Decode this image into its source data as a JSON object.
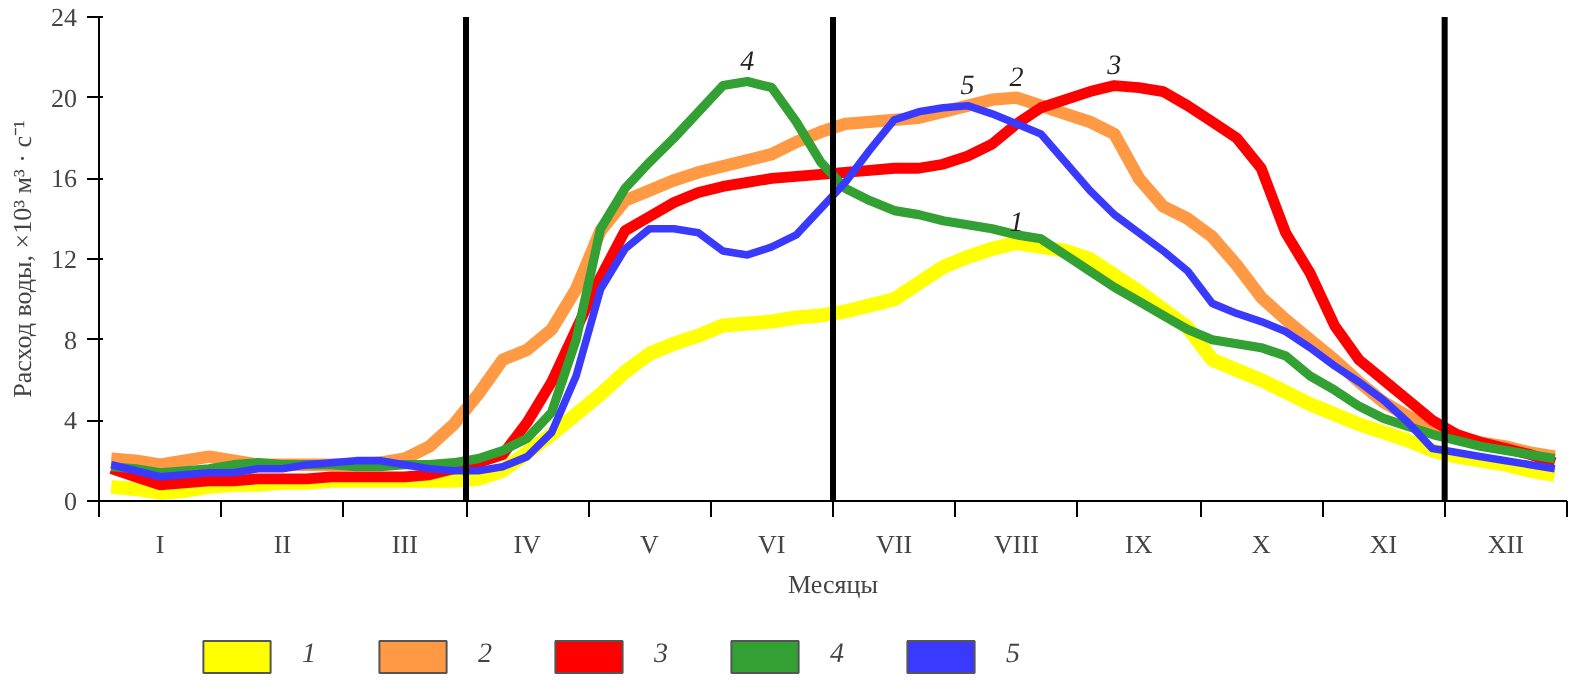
{
  "chart_data": {
    "type": "line",
    "ylabel": "Расход воды, ×10³ м³ · с⁻¹",
    "xlabel": "Месяцы",
    "categories": [
      null,
      null,
      "I",
      null,
      null,
      null,
      null,
      "II",
      null,
      null,
      null,
      null,
      "III",
      null,
      null,
      null,
      null,
      "IV",
      null,
      null,
      null,
      null,
      "V",
      null,
      null,
      null,
      null,
      "VI",
      null,
      null,
      null,
      null,
      "VII",
      null,
      null,
      null,
      null,
      "VIII",
      null,
      null,
      null,
      null,
      "IX",
      null,
      null,
      null,
      null,
      "X",
      null,
      null,
      null,
      null,
      "XI",
      null,
      null,
      null,
      null,
      "XII",
      null,
      null
    ],
    "ylim": [
      0,
      24
    ],
    "yticks": [
      0,
      4,
      8,
      12,
      16,
      20,
      24
    ],
    "grid": false,
    "legend": "bottom left",
    "marker": "none",
    "line_style": "solid",
    "series": [
      {
        "name": "1",
        "color": "#ffff00",
        "values": [
          0.7,
          0.6,
          0.4,
          0.5,
          0.7,
          0.8,
          0.8,
          0.9,
          0.9,
          1.0,
          1.0,
          1.0,
          1.0,
          1.0,
          1.0,
          1.1,
          1.5,
          2.4,
          3.3,
          4.3,
          5.3,
          6.4,
          7.3,
          7.8,
          8.2,
          8.7,
          8.8,
          8.9,
          9.1,
          9.2,
          9.4,
          9.7,
          10.0,
          10.8,
          11.6,
          12.1,
          12.5,
          12.8,
          12.6,
          12.4,
          12.0,
          11.2,
          10.4,
          9.5,
          8.6,
          7.0,
          6.5,
          6.0,
          5.4,
          4.8,
          4.3,
          3.8,
          3.4,
          3.0,
          2.5,
          2.2,
          2.0,
          1.8,
          1.5,
          1.3
        ]
      },
      {
        "name": "2",
        "color": "#ff9944",
        "values": [
          2.1,
          2.0,
          1.8,
          2.0,
          2.2,
          2.0,
          1.8,
          1.8,
          1.8,
          1.8,
          1.8,
          1.9,
          2.1,
          2.7,
          3.8,
          5.3,
          7.0,
          7.5,
          8.5,
          10.5,
          13.4,
          14.9,
          15.4,
          15.9,
          16.3,
          16.6,
          16.9,
          17.2,
          17.8,
          18.3,
          18.7,
          18.8,
          18.9,
          19.0,
          19.3,
          19.6,
          19.9,
          20.0,
          19.6,
          19.2,
          18.8,
          18.2,
          16.0,
          14.6,
          14.0,
          13.1,
          11.7,
          10.1,
          9.0,
          8.0,
          7.0,
          5.9,
          4.9,
          4.2,
          3.6,
          3.2,
          2.9,
          2.7,
          2.4,
          2.2
        ]
      },
      {
        "name": "3",
        "color": "#ff0000",
        "values": [
          1.6,
          1.2,
          0.8,
          0.9,
          1.0,
          1.0,
          1.1,
          1.1,
          1.1,
          1.2,
          1.2,
          1.2,
          1.2,
          1.3,
          1.6,
          1.9,
          2.3,
          3.9,
          5.9,
          8.5,
          11.1,
          13.4,
          14.1,
          14.8,
          15.3,
          15.6,
          15.8,
          16.0,
          16.1,
          16.2,
          16.3,
          16.4,
          16.5,
          16.5,
          16.7,
          17.1,
          17.7,
          18.7,
          19.5,
          19.9,
          20.3,
          20.6,
          20.5,
          20.3,
          19.6,
          18.8,
          18.0,
          16.5,
          13.3,
          11.3,
          8.7,
          7.0,
          6.0,
          5.0,
          4.0,
          3.3,
          2.9,
          2.6,
          2.3,
          1.9
        ]
      },
      {
        "name": "4",
        "color": "#33a033",
        "values": [
          1.7,
          1.6,
          1.4,
          1.5,
          1.6,
          1.8,
          1.9,
          1.8,
          1.8,
          1.8,
          1.7,
          1.7,
          1.8,
          1.8,
          1.9,
          2.1,
          2.5,
          3.1,
          4.4,
          8.0,
          13.5,
          15.5,
          16.8,
          18.0,
          19.3,
          20.6,
          20.8,
          20.5,
          18.8,
          16.8,
          15.5,
          14.9,
          14.4,
          14.2,
          13.9,
          13.7,
          13.5,
          13.2,
          13.0,
          12.2,
          11.4,
          10.6,
          9.9,
          9.2,
          8.5,
          8.0,
          7.8,
          7.6,
          7.2,
          6.2,
          5.5,
          4.7,
          4.1,
          3.7,
          3.3,
          3.0,
          2.7,
          2.5,
          2.3,
          2.1
        ]
      },
      {
        "name": "5",
        "color": "#3a3aff",
        "values": [
          1.8,
          1.5,
          1.2,
          1.3,
          1.4,
          1.4,
          1.6,
          1.6,
          1.8,
          1.9,
          2.0,
          2.0,
          1.8,
          1.6,
          1.5,
          1.5,
          1.7,
          2.2,
          3.4,
          6.2,
          10.5,
          12.5,
          13.5,
          13.5,
          13.3,
          12.4,
          12.2,
          12.6,
          13.2,
          14.5,
          15.8,
          17.4,
          18.9,
          19.3,
          19.5,
          19.6,
          19.2,
          18.7,
          18.2,
          16.8,
          15.4,
          14.2,
          13.3,
          12.4,
          11.4,
          9.8,
          9.3,
          8.9,
          8.4,
          7.6,
          6.7,
          5.9,
          5.0,
          3.9,
          2.6,
          2.4,
          2.2,
          2.0,
          1.8,
          1.6
        ]
      }
    ]
  }
}
